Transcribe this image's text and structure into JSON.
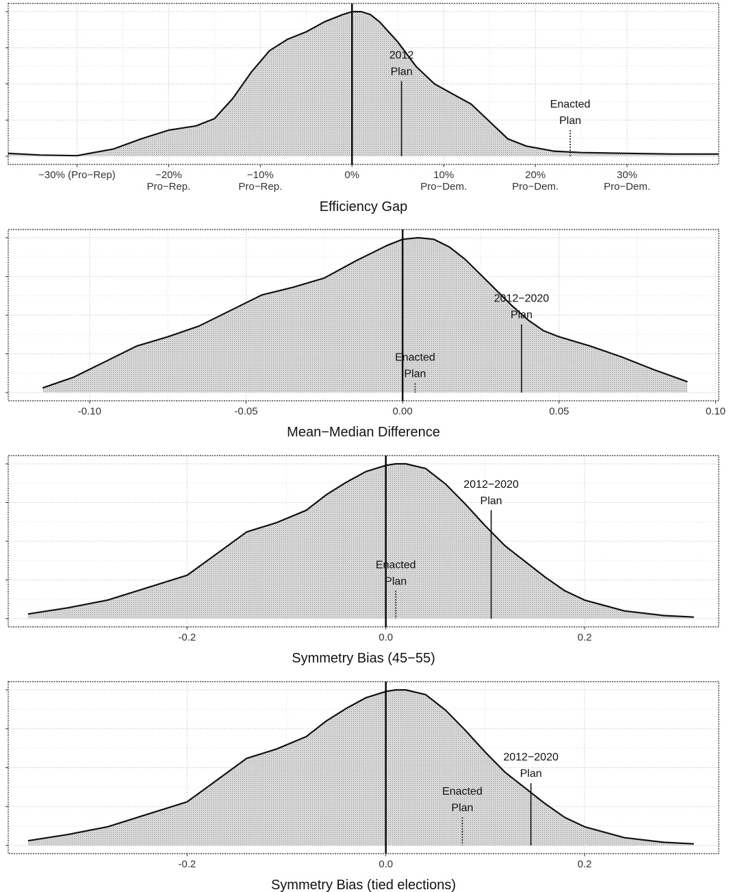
{
  "chart_data": [
    {
      "type": "area",
      "xlabel": "Efficiency Gap",
      "xlim": [
        -0.375,
        0.4
      ],
      "ylim": [
        0,
        1
      ],
      "grid": true,
      "ticks": [
        {
          "value": -0.3,
          "line1": "−30% (Pro−Rep)",
          "line2": ""
        },
        {
          "value": -0.2,
          "line1": "−20%",
          "line2": "Pro−Rep."
        },
        {
          "value": -0.1,
          "line1": "−10%",
          "line2": "Pro−Rep."
        },
        {
          "value": 0.0,
          "line1": "0%",
          "line2": ""
        },
        {
          "value": 0.1,
          "line1": "10%",
          "line2": "Pro−Dem."
        },
        {
          "value": 0.2,
          "line1": "20%",
          "line2": "Pro−Dem."
        },
        {
          "value": 0.3,
          "line1": "30%",
          "line2": "Pro−Dem."
        }
      ],
      "density": {
        "x": [
          -0.375,
          -0.34,
          -0.3,
          -0.26,
          -0.23,
          -0.2,
          -0.17,
          -0.15,
          -0.13,
          -0.11,
          -0.09,
          -0.07,
          -0.05,
          -0.03,
          -0.01,
          0.0,
          0.01,
          0.02,
          0.03,
          0.05,
          0.07,
          0.09,
          0.11,
          0.13,
          0.15,
          0.17,
          0.19,
          0.22,
          0.25,
          0.3,
          0.35,
          0.4
        ],
        "y": [
          0.02,
          0.008,
          0.004,
          0.05,
          0.12,
          0.18,
          0.21,
          0.26,
          0.4,
          0.58,
          0.73,
          0.81,
          0.86,
          0.93,
          0.98,
          1.0,
          1.0,
          0.98,
          0.93,
          0.79,
          0.62,
          0.5,
          0.43,
          0.36,
          0.24,
          0.12,
          0.07,
          0.035,
          0.025,
          0.02,
          0.015,
          0.015
        ]
      },
      "zero_line": 0,
      "annotations": [
        {
          "label1": "2012",
          "label2": "Plan",
          "x": 0.054,
          "height": 0.52,
          "style": "solid"
        },
        {
          "label1": "Enacted",
          "label2": "Plan",
          "x": 0.238,
          "height": 0.18,
          "style": "dashed"
        }
      ]
    },
    {
      "type": "area",
      "xlabel": "Mean−Median Difference",
      "xlim": [
        -0.126,
        0.101
      ],
      "ylim": [
        0,
        1
      ],
      "grid": true,
      "ticks": [
        {
          "value": -0.1,
          "line1": "-0.10",
          "line2": ""
        },
        {
          "value": -0.05,
          "line1": "-0.05",
          "line2": ""
        },
        {
          "value": 0.0,
          "line1": "0.00",
          "line2": ""
        },
        {
          "value": 0.05,
          "line1": "0.05",
          "line2": ""
        },
        {
          "value": 0.1,
          "line1": "0.10",
          "line2": ""
        }
      ],
      "density": {
        "x": [
          -0.115,
          -0.105,
          -0.095,
          -0.085,
          -0.075,
          -0.065,
          -0.055,
          -0.045,
          -0.035,
          -0.025,
          -0.015,
          -0.005,
          0.0,
          0.005,
          0.01,
          0.015,
          0.02,
          0.025,
          0.03,
          0.035,
          0.04,
          0.045,
          0.05,
          0.06,
          0.07,
          0.08,
          0.091
        ],
        "y": [
          0.03,
          0.1,
          0.2,
          0.3,
          0.36,
          0.43,
          0.53,
          0.63,
          0.68,
          0.74,
          0.85,
          0.95,
          0.99,
          1.0,
          0.99,
          0.94,
          0.86,
          0.76,
          0.66,
          0.56,
          0.47,
          0.4,
          0.36,
          0.3,
          0.23,
          0.15,
          0.07
        ]
      },
      "zero_line": 0,
      "annotations": [
        {
          "label1": "2012−2020",
          "label2": "Plan",
          "x": 0.038,
          "height": 0.44,
          "style": "solid"
        },
        {
          "label1": "Enacted",
          "label2": "Plan",
          "x": 0.004,
          "height": 0.06,
          "style": "dashed"
        }
      ]
    },
    {
      "type": "area",
      "xlabel": "Symmetry Bias (45−55)",
      "xlim": [
        -0.38,
        0.335
      ],
      "ylim": [
        0,
        1
      ],
      "grid": true,
      "ticks": [
        {
          "value": -0.2,
          "line1": "-0.2",
          "line2": ""
        },
        {
          "value": 0.0,
          "line1": "0.0",
          "line2": ""
        },
        {
          "value": 0.2,
          "line1": "0.2",
          "line2": ""
        }
      ],
      "density": {
        "x": [
          -0.36,
          -0.32,
          -0.28,
          -0.24,
          -0.2,
          -0.17,
          -0.14,
          -0.11,
          -0.08,
          -0.06,
          -0.04,
          -0.02,
          0.0,
          0.01,
          0.02,
          0.04,
          0.06,
          0.08,
          0.1,
          0.12,
          0.14,
          0.16,
          0.18,
          0.2,
          0.24,
          0.28,
          0.31
        ],
        "y": [
          0.03,
          0.07,
          0.12,
          0.2,
          0.28,
          0.42,
          0.56,
          0.62,
          0.7,
          0.8,
          0.88,
          0.95,
          0.99,
          1.0,
          1.0,
          0.97,
          0.87,
          0.74,
          0.6,
          0.47,
          0.37,
          0.27,
          0.18,
          0.12,
          0.05,
          0.02,
          0.01
        ]
      },
      "zero_line": 0,
      "annotations": [
        {
          "label1": "2012−2020",
          "label2": "Plan",
          "x": 0.106,
          "height": 0.7,
          "style": "solid"
        },
        {
          "label1": "Enacted",
          "label2": "Plan",
          "x": 0.01,
          "height": 0.18,
          "style": "dashed"
        }
      ]
    },
    {
      "type": "area",
      "xlabel": "Symmetry Bias (tied elections)",
      "xlim": [
        -0.38,
        0.335
      ],
      "ylim": [
        0,
        1
      ],
      "grid": true,
      "ticks": [
        {
          "value": -0.2,
          "line1": "-0.2",
          "line2": ""
        },
        {
          "value": 0.0,
          "line1": "0.0",
          "line2": ""
        },
        {
          "value": 0.2,
          "line1": "0.2",
          "line2": ""
        }
      ],
      "density": {
        "x": [
          -0.36,
          -0.32,
          -0.28,
          -0.24,
          -0.2,
          -0.17,
          -0.14,
          -0.11,
          -0.08,
          -0.06,
          -0.04,
          -0.02,
          0.0,
          0.01,
          0.02,
          0.04,
          0.06,
          0.08,
          0.1,
          0.12,
          0.14,
          0.16,
          0.18,
          0.2,
          0.24,
          0.28,
          0.31
        ],
        "y": [
          0.03,
          0.07,
          0.12,
          0.2,
          0.28,
          0.42,
          0.56,
          0.62,
          0.7,
          0.8,
          0.88,
          0.95,
          0.99,
          1.0,
          1.0,
          0.97,
          0.87,
          0.74,
          0.6,
          0.47,
          0.37,
          0.27,
          0.18,
          0.12,
          0.05,
          0.02,
          0.01
        ]
      },
      "zero_line": 0,
      "annotations": [
        {
          "label1": "2012−2020",
          "label2": "Plan",
          "x": 0.146,
          "height": 0.4,
          "style": "solid"
        },
        {
          "label1": "Enacted",
          "label2": "Plan",
          "x": 0.077,
          "height": 0.18,
          "style": "dashed"
        }
      ]
    }
  ]
}
